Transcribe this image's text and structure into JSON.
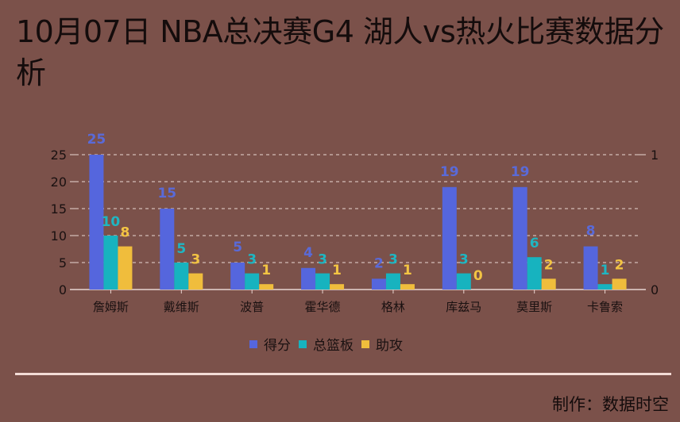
{
  "title": "10月07日 NBA总决赛G4 湖人vs热火比赛数据分析",
  "colors": {
    "background": "#7b514a",
    "points": "#5566dd",
    "rebounds": "#17b3bf",
    "assists": "#f0bd3c",
    "grid": "#e8d6d2"
  },
  "legend": {
    "items": [
      {
        "label": "得分",
        "color": "#5566dd"
      },
      {
        "label": "总篮板",
        "color": "#17b3bf"
      },
      {
        "label": "助攻",
        "color": "#f0bd3c"
      }
    ]
  },
  "credit": "制作：数据时空",
  "chart_data": {
    "type": "bar",
    "title": "10月07日 NBA总决赛G4 湖人vs热火比赛数据分析",
    "categories": [
      "詹姆斯",
      "戴维斯",
      "波普",
      "霍华德",
      "格林",
      "库兹马",
      "莫里斯",
      "卡鲁索"
    ],
    "series": [
      {
        "name": "得分",
        "values": [
          25,
          15,
          5,
          4,
          2,
          19,
          19,
          8
        ]
      },
      {
        "name": "总篮板",
        "values": [
          10,
          5,
          3,
          3,
          3,
          3,
          6,
          1
        ]
      },
      {
        "name": "助攻",
        "values": [
          8,
          3,
          1,
          1,
          1,
          0,
          2,
          2
        ]
      }
    ],
    "xlabel": "",
    "ylabel": "",
    "ylim": [
      0,
      25
    ],
    "yticks": [
      0,
      5,
      10,
      15,
      20,
      25
    ],
    "y2ticks": [
      0,
      1
    ],
    "grid": true,
    "legend_position": "bottom",
    "data_labels": true
  }
}
